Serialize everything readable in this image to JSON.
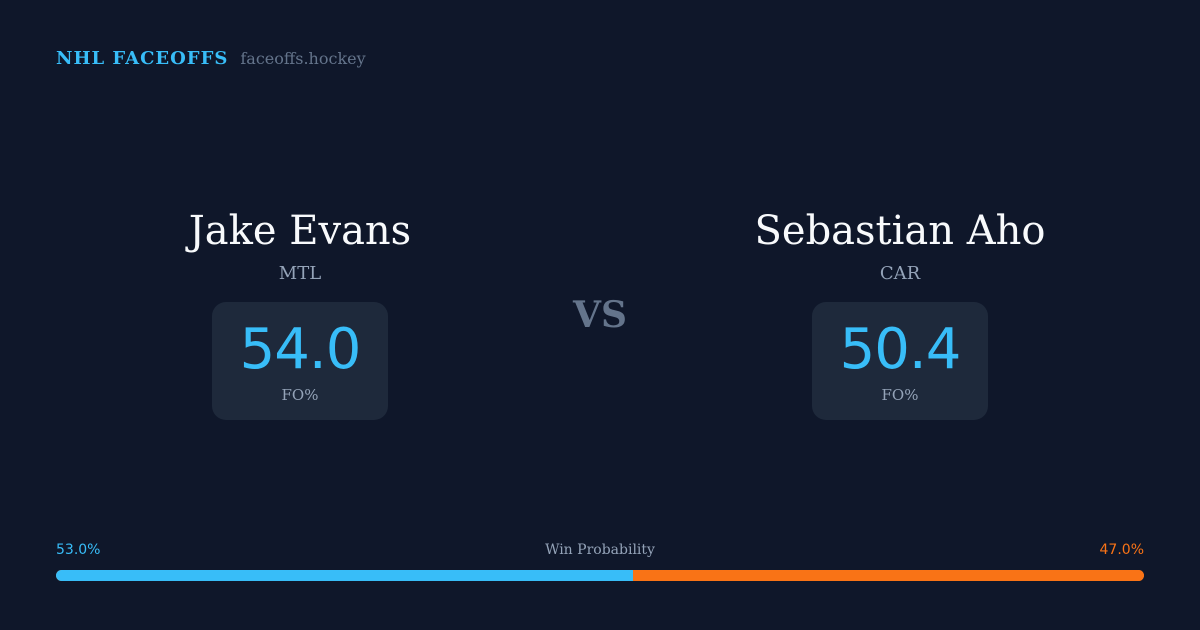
{
  "brand": {
    "title": "NHL FACEOFFS",
    "site": "faceoffs.hockey"
  },
  "players": [
    {
      "name": "Jake Evans",
      "team": "MTL",
      "fo_pct": "54.0",
      "fo_label": "FO%"
    },
    {
      "name": "Sebastian Aho",
      "team": "CAR",
      "fo_pct": "50.4",
      "fo_label": "FO%"
    }
  ],
  "vs_label": "VS",
  "win_probability": {
    "label": "Win Probability",
    "left_text": "53.0%",
    "right_text": "47.0%",
    "left_value": 53.0,
    "right_value": 47.0,
    "left_color": "#38bdf8",
    "right_color": "#f97316"
  }
}
